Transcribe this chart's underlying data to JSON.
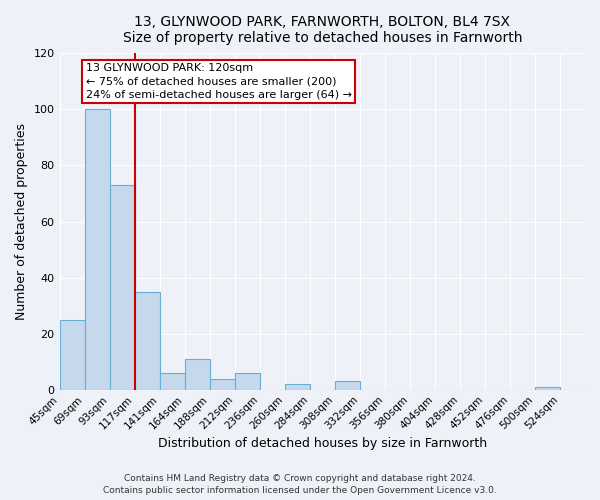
{
  "title": "13, GLYNWOOD PARK, FARNWORTH, BOLTON, BL4 7SX",
  "subtitle": "Size of property relative to detached houses in Farnworth",
  "xlabel": "Distribution of detached houses by size in Farnworth",
  "ylabel": "Number of detached properties",
  "bar_values": [
    25,
    100,
    73,
    35,
    6,
    11,
    4,
    6,
    0,
    2,
    0,
    3,
    0,
    0,
    0,
    0,
    0,
    0,
    0,
    1,
    0
  ],
  "bin_labels": [
    "45sqm",
    "69sqm",
    "93sqm",
    "117sqm",
    "141sqm",
    "164sqm",
    "188sqm",
    "212sqm",
    "236sqm",
    "260sqm",
    "284sqm",
    "308sqm",
    "332sqm",
    "356sqm",
    "380sqm",
    "404sqm",
    "428sqm",
    "452sqm",
    "476sqm",
    "500sqm",
    "524sqm"
  ],
  "bar_color": "#c5d8ec",
  "bar_edgecolor": "#6aaed6",
  "red_line_x": 3,
  "marker_color": "#cc0000",
  "annotation_title": "13 GLYNWOOD PARK: 120sqm",
  "annotation_line1": "← 75% of detached houses are smaller (200)",
  "annotation_line2": "24% of semi-detached houses are larger (64) →",
  "annotation_box_color": "#cc0000",
  "ylim": [
    0,
    120
  ],
  "yticks": [
    0,
    20,
    40,
    60,
    80,
    100,
    120
  ],
  "footer1": "Contains HM Land Registry data © Crown copyright and database right 2024.",
  "footer2": "Contains public sector information licensed under the Open Government Licence v3.0.",
  "background_color": "#eef2f8",
  "plot_bg_color": "#eef2f8"
}
